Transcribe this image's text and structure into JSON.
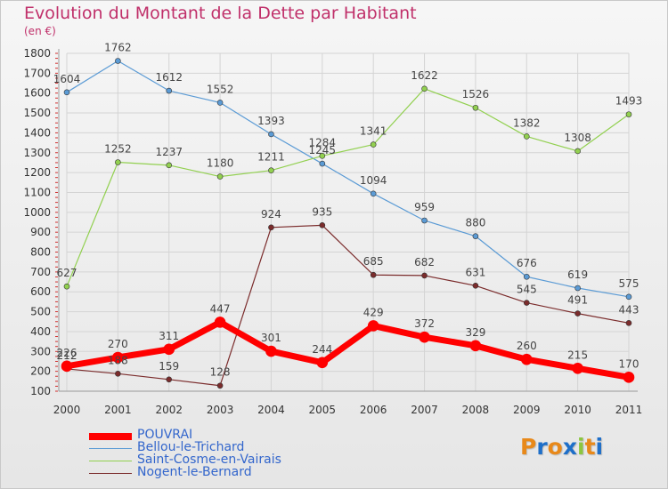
{
  "header": {
    "title": "Evolution du Montant de la Dette par Habitant",
    "unit": "(en €)"
  },
  "chart_data": {
    "type": "line",
    "title": "Evolution du Montant de la Dette par Habitant",
    "subtitle": "(en €)",
    "xlabel": "",
    "ylabel": "",
    "categories": [
      "2000",
      "2001",
      "2002",
      "2003",
      "2004",
      "2005",
      "2006",
      "2007",
      "2008",
      "2009",
      "2010",
      "2011"
    ],
    "ylim": [
      100,
      1800
    ],
    "yticks": [
      100,
      200,
      300,
      400,
      500,
      600,
      700,
      800,
      900,
      1000,
      1100,
      1200,
      1300,
      1400,
      1500,
      1600,
      1700,
      1800
    ],
    "grid": true,
    "legend_position": "bottom-left",
    "series": [
      {
        "name": "POUVRAI",
        "color": "#ff0000",
        "width": 7,
        "values": [
          226,
          270,
          311,
          447,
          301,
          244,
          429,
          372,
          329,
          260,
          215,
          170
        ]
      },
      {
        "name": "Bellou-le-Trichard",
        "color": "#5b9bd5",
        "width": 1.2,
        "values": [
          1604,
          1762,
          1612,
          1552,
          1393,
          1245,
          1094,
          959,
          880,
          676,
          619,
          575
        ]
      },
      {
        "name": "Saint-Cosme-en-Vairais",
        "color": "#92d050",
        "width": 1.2,
        "values": [
          627,
          1252,
          1237,
          1180,
          1211,
          1284,
          1341,
          1622,
          1526,
          1382,
          1308,
          1493
        ]
      },
      {
        "name": "Nogent-le-Bernard",
        "color": "#7b2c2c",
        "width": 1.2,
        "values": [
          212,
          188,
          159,
          128,
          924,
          935,
          685,
          682,
          631,
          545,
          491,
          443
        ]
      }
    ]
  },
  "logo": {
    "letters": [
      "P",
      "r",
      "o",
      "x",
      "i",
      "t",
      "i"
    ],
    "colors": [
      "#e8891a",
      "#1e6fc9",
      "#e8891a",
      "#1e6fc9",
      "#8cc63f",
      "#e8891a",
      "#1e6fc9"
    ]
  }
}
